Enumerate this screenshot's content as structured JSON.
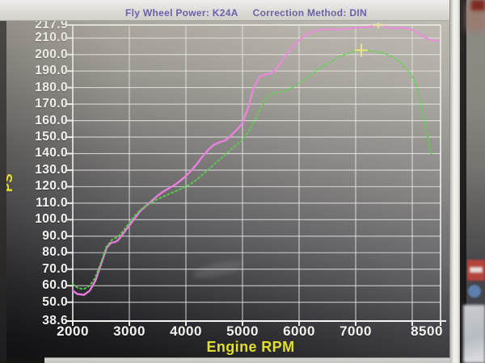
{
  "title_bar": {
    "left_label": "Fly Wheel Power: K24A",
    "right_label": "Correction Method: DIN",
    "text_color": "#6a61a8"
  },
  "photo_artifacts": {
    "clipped_digit": "0",
    "reflection_oval_count": 6
  },
  "axis_style": {
    "tick_text_color": "#f3f2ef",
    "axis_title_color": "#e2de2e",
    "gridline_color": "rgba(240,240,238,0.78)"
  },
  "chart_data": {
    "type": "line",
    "title": "Fly Wheel Power: K24A  Correction Method: DIN",
    "xlabel": "Engine RPM",
    "ylabel": "PS",
    "xlim": [
      2000,
      8500
    ],
    "ylim": [
      38.6,
      217.9
    ],
    "grid": true,
    "legend_position": "none",
    "x_tick_labels": [
      {
        "value": 2000,
        "label": "2000"
      },
      {
        "value": 3000,
        "label": "3000"
      },
      {
        "value": 4000,
        "label": "4000"
      },
      {
        "value": 5000,
        "label": "5000"
      },
      {
        "value": 6000,
        "label": "6000"
      },
      {
        "value": 7000,
        "label": "7000"
      },
      {
        "value": 8500,
        "label": "8500"
      }
    ],
    "x_gridlines": [
      2000,
      3000,
      4000,
      5000,
      6000,
      7000,
      8000,
      8500
    ],
    "y_tick_labels": [
      {
        "value": 217.9,
        "label": "217.9"
      },
      {
        "value": 210,
        "label": "210.0"
      },
      {
        "value": 200,
        "label": "200.0"
      },
      {
        "value": 190,
        "label": "190.0"
      },
      {
        "value": 180,
        "label": "180.0"
      },
      {
        "value": 170,
        "label": "170.0"
      },
      {
        "value": 160,
        "label": "160.0"
      },
      {
        "value": 150,
        "label": "150.0"
      },
      {
        "value": 140,
        "label": "140.0"
      },
      {
        "value": 130,
        "label": "130.0"
      },
      {
        "value": 120,
        "label": "120.0"
      },
      {
        "value": 110,
        "label": "110.0"
      },
      {
        "value": 100,
        "label": "100.0"
      },
      {
        "value": 90,
        "label": "90.0"
      },
      {
        "value": 80,
        "label": "80.0"
      },
      {
        "value": 70,
        "label": "70.0"
      },
      {
        "value": 60,
        "label": "60.0"
      },
      {
        "value": 50,
        "label": "50.0"
      },
      {
        "value": 38.6,
        "label": "38.6"
      }
    ],
    "series": [
      {
        "name": "power-run-magenta",
        "color": "#ee7fe2",
        "style": "solid",
        "peak": {
          "rpm": 7400,
          "ps": 217.9
        },
        "points": [
          [
            2000,
            57
          ],
          [
            2080,
            55
          ],
          [
            2200,
            54.5
          ],
          [
            2300,
            57
          ],
          [
            2400,
            63
          ],
          [
            2500,
            73
          ],
          [
            2600,
            83
          ],
          [
            2680,
            86
          ],
          [
            2750,
            86.5
          ],
          [
            2800,
            87.5
          ],
          [
            2900,
            92
          ],
          [
            3000,
            96.5
          ],
          [
            3100,
            101
          ],
          [
            3200,
            105.5
          ],
          [
            3300,
            108.5
          ],
          [
            3400,
            111.5
          ],
          [
            3500,
            114.5
          ],
          [
            3600,
            117
          ],
          [
            3700,
            119
          ],
          [
            3800,
            121
          ],
          [
            3900,
            123.5
          ],
          [
            4000,
            126.5
          ],
          [
            4100,
            130
          ],
          [
            4200,
            134
          ],
          [
            4300,
            138.5
          ],
          [
            4400,
            142.5
          ],
          [
            4500,
            145.5
          ],
          [
            4600,
            147
          ],
          [
            4700,
            148
          ],
          [
            4800,
            151
          ],
          [
            4900,
            154.5
          ],
          [
            5000,
            158.5
          ],
          [
            5100,
            168
          ],
          [
            5200,
            180
          ],
          [
            5300,
            186.5
          ],
          [
            5400,
            188
          ],
          [
            5500,
            188.5
          ],
          [
            5600,
            191.5
          ],
          [
            5700,
            196
          ],
          [
            5800,
            201
          ],
          [
            5900,
            205
          ],
          [
            6000,
            208.5
          ],
          [
            6100,
            211.5
          ],
          [
            6200,
            213.5
          ],
          [
            6300,
            214.5
          ],
          [
            6400,
            215.2
          ],
          [
            6500,
            215.5
          ],
          [
            6600,
            215.3
          ],
          [
            6700,
            215
          ],
          [
            6800,
            215.4
          ],
          [
            6900,
            215.8
          ],
          [
            7000,
            216.2
          ],
          [
            7100,
            216.4
          ],
          [
            7200,
            216.6
          ],
          [
            7300,
            217.3
          ],
          [
            7400,
            217.9
          ],
          [
            7500,
            217.2
          ],
          [
            7600,
            216.2
          ],
          [
            7700,
            215.8
          ],
          [
            7800,
            216.3
          ],
          [
            7900,
            216
          ],
          [
            8000,
            215
          ],
          [
            8100,
            213
          ],
          [
            8200,
            210.8
          ],
          [
            8300,
            209
          ],
          [
            8400,
            208.3
          ],
          [
            8450,
            208.2
          ]
        ]
      },
      {
        "name": "power-run-green-dotted",
        "color": "#57d14b",
        "style": "dotted",
        "peak": {
          "rpm": 7100,
          "ps": 202.6
        },
        "points": [
          [
            2000,
            61
          ],
          [
            2100,
            58.5
          ],
          [
            2200,
            58
          ],
          [
            2300,
            60
          ],
          [
            2400,
            65
          ],
          [
            2500,
            74
          ],
          [
            2600,
            84
          ],
          [
            2700,
            88
          ],
          [
            2800,
            89.5
          ],
          [
            2900,
            93.5
          ],
          [
            3000,
            98
          ],
          [
            3100,
            102.5
          ],
          [
            3200,
            106
          ],
          [
            3300,
            108.5
          ],
          [
            3400,
            110.5
          ],
          [
            3500,
            112.5
          ],
          [
            3600,
            114
          ],
          [
            3700,
            115.5
          ],
          [
            3800,
            117
          ],
          [
            3900,
            118.5
          ],
          [
            4000,
            120
          ],
          [
            4100,
            122
          ],
          [
            4200,
            124.5
          ],
          [
            4300,
            127.5
          ],
          [
            4400,
            130.5
          ],
          [
            4500,
            133.5
          ],
          [
            4600,
            136.5
          ],
          [
            4700,
            139.5
          ],
          [
            4800,
            142.5
          ],
          [
            4900,
            145.5
          ],
          [
            5000,
            148.5
          ],
          [
            5100,
            153
          ],
          [
            5200,
            159
          ],
          [
            5300,
            166
          ],
          [
            5400,
            172.5
          ],
          [
            5500,
            176
          ],
          [
            5600,
            177
          ],
          [
            5700,
            177.5
          ],
          [
            5800,
            178.5
          ],
          [
            5900,
            180.5
          ],
          [
            6000,
            182.5
          ],
          [
            6100,
            185
          ],
          [
            6200,
            187.5
          ],
          [
            6300,
            190
          ],
          [
            6400,
            192.5
          ],
          [
            6500,
            194.5
          ],
          [
            6600,
            196.5
          ],
          [
            6700,
            198.5
          ],
          [
            6800,
            200
          ],
          [
            6900,
            201.2
          ],
          [
            7000,
            202
          ],
          [
            7100,
            202.6
          ],
          [
            7200,
            202.4
          ],
          [
            7300,
            202
          ],
          [
            7400,
            201.5
          ],
          [
            7500,
            200.8
          ],
          [
            7600,
            199.5
          ],
          [
            7700,
            197.5
          ],
          [
            7800,
            195
          ],
          [
            7900,
            191.5
          ],
          [
            8000,
            187
          ],
          [
            8100,
            178
          ],
          [
            8150,
            171
          ],
          [
            8200,
            162
          ],
          [
            8250,
            153
          ],
          [
            8300,
            145
          ],
          [
            8340,
            140
          ]
        ]
      }
    ],
    "markers": [
      {
        "name": "cursor-cross",
        "shape": "cross",
        "rpm": 7100,
        "ps": 202.6,
        "color": "#eef06a"
      },
      {
        "name": "peak-tick",
        "shape": "tick",
        "rpm": 7400,
        "ps": 217.9,
        "color": "#f2f2a6"
      }
    ]
  }
}
